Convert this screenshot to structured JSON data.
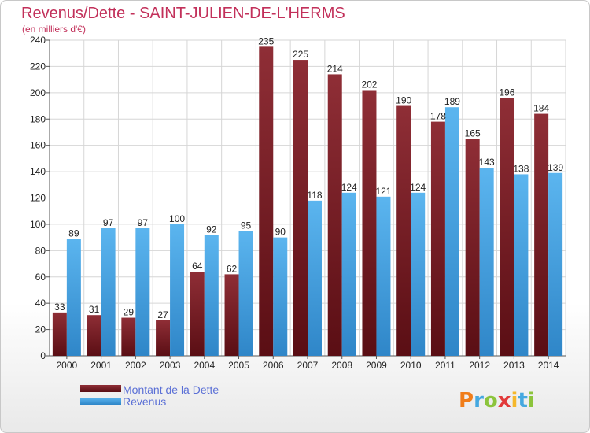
{
  "header": {
    "title": "Revenus/Dette - SAINT-JULIEN-DE-L'HERMS",
    "subtitle": "(en milliers d'€)"
  },
  "legend": {
    "items": [
      {
        "label": "Montant de la Dette",
        "color": "#8b2a32"
      },
      {
        "label": "Revenus",
        "color": "#4aa6e3"
      }
    ]
  },
  "logo": {
    "text": "Proxiti"
  },
  "chart_data": {
    "type": "bar",
    "title": "Revenus/Dette - SAINT-JULIEN-DE-L'HERMS",
    "subtitle": "(en milliers d'€)",
    "categories": [
      "2000",
      "2001",
      "2002",
      "2003",
      "2004",
      "2005",
      "2006",
      "2007",
      "2008",
      "2009",
      "2010",
      "2011",
      "2012",
      "2013",
      "2014"
    ],
    "series": [
      {
        "name": "Montant de la Dette",
        "color": "#8b2a32",
        "values": [
          33,
          31,
          29,
          27,
          64,
          62,
          235,
          225,
          214,
          202,
          190,
          178,
          165,
          196,
          184
        ],
        "labels": [
          "33",
          "31",
          "29",
          "27",
          "64",
          "62",
          "235",
          "225",
          "214",
          "202",
          "190",
          "178",
          "165",
          "196",
          "184"
        ]
      },
      {
        "name": "Revenus",
        "color": "#4aa6e3",
        "values": [
          89,
          97,
          97,
          100,
          92,
          95,
          90,
          118,
          124,
          121,
          124,
          189,
          143,
          138,
          139
        ],
        "labels": [
          "89",
          "97",
          "97",
          "100",
          "92",
          "95",
          "90",
          "118",
          "124",
          "121",
          "124",
          "189",
          "143",
          "138",
          "139"
        ]
      }
    ],
    "ylim": [
      0,
      240
    ],
    "yticks": [
      0,
      20,
      40,
      60,
      80,
      100,
      120,
      140,
      160,
      180,
      200,
      220,
      240
    ],
    "ytick_labels": [
      "0",
      "20",
      "40",
      "60",
      "80",
      "100",
      "120",
      "140",
      "160",
      "180",
      "200",
      "220",
      "240"
    ],
    "grid": true,
    "legend_position": "bottom-left"
  }
}
